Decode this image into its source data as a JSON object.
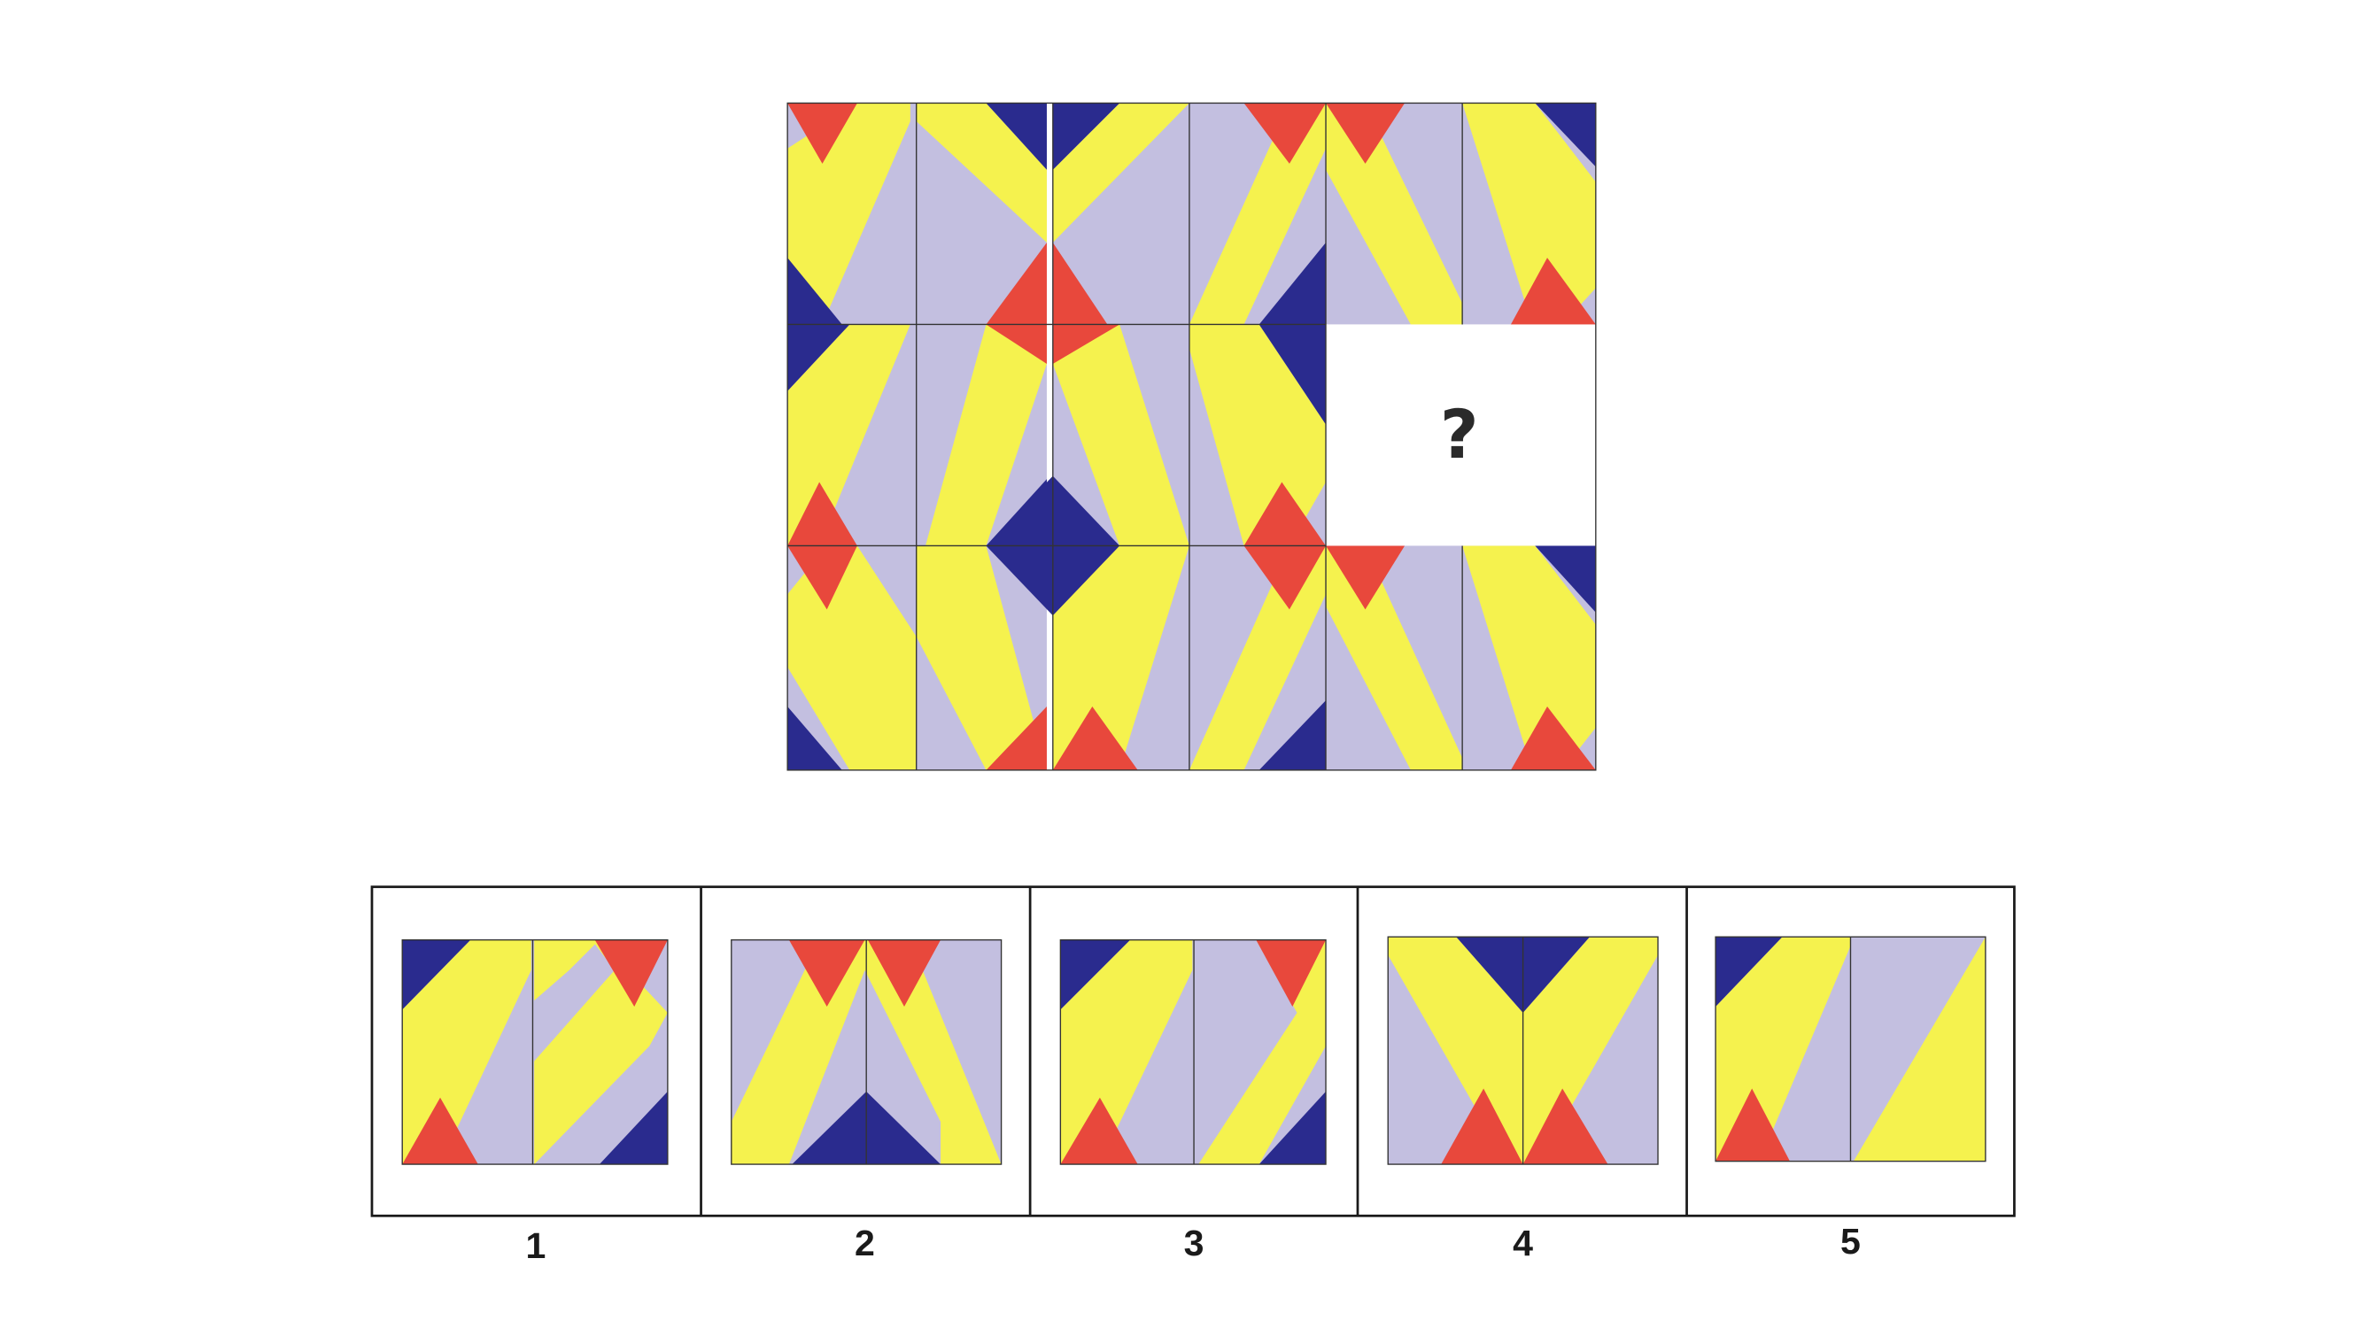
{
  "colors": {
    "yellow": "#f5f24e",
    "lavender": "#c3bfe0",
    "red": "#e8483c",
    "navy": "#2a2b8e",
    "divider": "#222222",
    "frame": "#1a1a1a",
    "background": "#ffffff"
  },
  "puzzle": {
    "missing_label": "?",
    "rows": 3,
    "cols": 3
  },
  "options": [
    {
      "number": "1"
    },
    {
      "number": "2"
    },
    {
      "number": "3"
    },
    {
      "number": "4"
    },
    {
      "number": "5"
    }
  ]
}
